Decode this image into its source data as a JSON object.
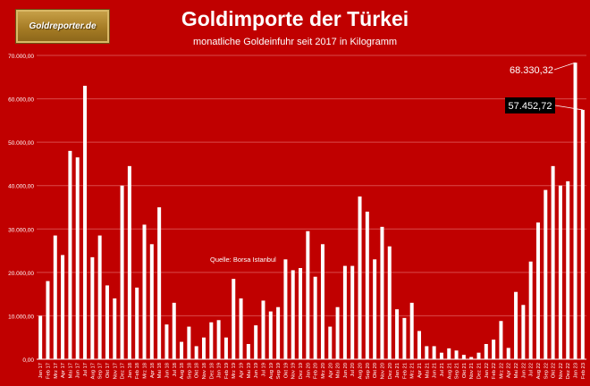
{
  "logo": {
    "text": "Goldreporter.de"
  },
  "chart_data": {
    "type": "bar",
    "title": "Goldimporte der Türkei",
    "subtitle": "monatliche Goldeinfuhr seit 2017 in Kilogramm",
    "xlabel": "",
    "ylabel": "",
    "ylim": [
      0,
      70000
    ],
    "yticks": [
      0,
      10000,
      20000,
      30000,
      40000,
      50000,
      60000,
      70000
    ],
    "ytick_labels": [
      "0,00",
      "10.000,00",
      "20.000,00",
      "30.000,00",
      "40.000,00",
      "50.000,00",
      "60.000,00",
      "70.000,00"
    ],
    "grid": true,
    "categories": [
      "Jan 17",
      "Feb 17",
      "Mrz 17",
      "Apr 17",
      "Mai 17",
      "Jun 17",
      "Jul 17",
      "Aug 17",
      "Sep 17",
      "Okt 17",
      "Nov 17",
      "Dez 17",
      "Jan 18",
      "Feb 18",
      "Mrz 18",
      "Apr 18",
      "Mai 18",
      "Jun 18",
      "Jul 18",
      "Aug 18",
      "Sep 18",
      "Okt 18",
      "Nov 18",
      "Dez 18",
      "Jan 19",
      "Feb 19",
      "Mrz 19",
      "Apr 19",
      "Mai 19",
      "Jun 19",
      "Jul 19",
      "Aug 19",
      "Sep 19",
      "Okt 19",
      "Nov 19",
      "Dez 19",
      "Jan 20",
      "Feb 20",
      "Mrz 20",
      "Apr 20",
      "Mai 20",
      "Jun 20",
      "Jul 20",
      "Aug 20",
      "Sep 20",
      "Okt 20",
      "Nov 20",
      "Dez 20",
      "Jan 21",
      "Feb 21",
      "Mrz 21",
      "Apr 21",
      "Mai 21",
      "Jun 21",
      "Jul 21",
      "Aug 21",
      "Sep 21",
      "Okt 21",
      "Nov 21",
      "Dez 21",
      "Jan 22",
      "Feb 22",
      "Mrz 22",
      "Apr 22",
      "Mai 22",
      "Jun 22",
      "Jul 22",
      "Aug 22",
      "Sep 22",
      "Okt 22",
      "Nov 22",
      "Dez 22",
      "Jan 23",
      "Feb 23"
    ],
    "values": [
      10000,
      18000,
      28500,
      24000,
      48000,
      46500,
      63000,
      23500,
      28500,
      17000,
      14000,
      40000,
      44500,
      16500,
      31000,
      26500,
      35000,
      8000,
      13000,
      4000,
      7500,
      3000,
      5000,
      8500,
      9000,
      5000,
      18500,
      14000,
      3500,
      7800,
      13500,
      11000,
      12000,
      23000,
      20500,
      21000,
      29500,
      19000,
      26500,
      7500,
      12000,
      21500,
      21500,
      37500,
      34000,
      23000,
      30500,
      26000,
      11500,
      9500,
      13000,
      6500,
      3000,
      3000,
      1500,
      2500,
      2000,
      1000,
      500,
      1500,
      3500,
      4500,
      8800,
      2600,
      15500,
      12500,
      22500,
      31500,
      39000,
      44500,
      40000,
      41000,
      68330.32,
      57452.72
    ],
    "callouts": [
      {
        "label": "68.330,32",
        "category": "Jan 23",
        "value": 68330.32
      },
      {
        "label": "57.452,72",
        "category": "Feb 23",
        "value": 57452.72
      }
    ],
    "annotation": "Quelle: Borsa Istanbul",
    "colors": {
      "background": "#c00000",
      "bar": "#ffffff",
      "grid": "#d94a4a",
      "text": "#ffffff"
    }
  }
}
